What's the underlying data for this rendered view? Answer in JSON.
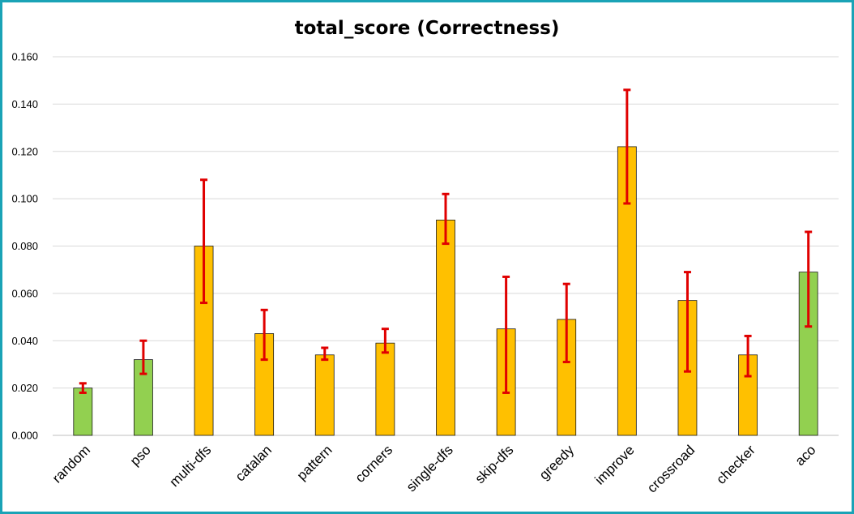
{
  "chart_data": {
    "type": "bar",
    "title": "total_score (Correctness)",
    "xlabel": "",
    "ylabel": "",
    "ylim": [
      0,
      0.16
    ],
    "yticks": [
      "0.000",
      "0.020",
      "0.040",
      "0.060",
      "0.080",
      "0.100",
      "0.120",
      "0.140",
      "0.160"
    ],
    "grid": true,
    "legend": "none",
    "categories": [
      "random",
      "pso",
      "multi-dfs",
      "catalan",
      "pattern",
      "corners",
      "single-dfs",
      "skip-dfs",
      "greedy",
      "improve",
      "crossroad",
      "checker",
      "aco"
    ],
    "values": [
      0.02,
      0.032,
      0.08,
      0.043,
      0.034,
      0.039,
      0.091,
      0.045,
      0.049,
      0.122,
      0.057,
      0.034,
      0.069
    ],
    "error_low": [
      0.018,
      0.026,
      0.056,
      0.032,
      0.032,
      0.035,
      0.081,
      0.018,
      0.031,
      0.098,
      0.027,
      0.025,
      0.046
    ],
    "error_high": [
      0.022,
      0.04,
      0.108,
      0.053,
      0.037,
      0.045,
      0.102,
      0.067,
      0.064,
      0.146,
      0.069,
      0.042,
      0.086
    ],
    "bar_colors": [
      "#92d050",
      "#92d050",
      "#ffc000",
      "#ffc000",
      "#ffc000",
      "#ffc000",
      "#ffc000",
      "#ffc000",
      "#ffc000",
      "#ffc000",
      "#ffc000",
      "#ffc000",
      "#92d050"
    ],
    "error_bar_color": "#e00000"
  }
}
